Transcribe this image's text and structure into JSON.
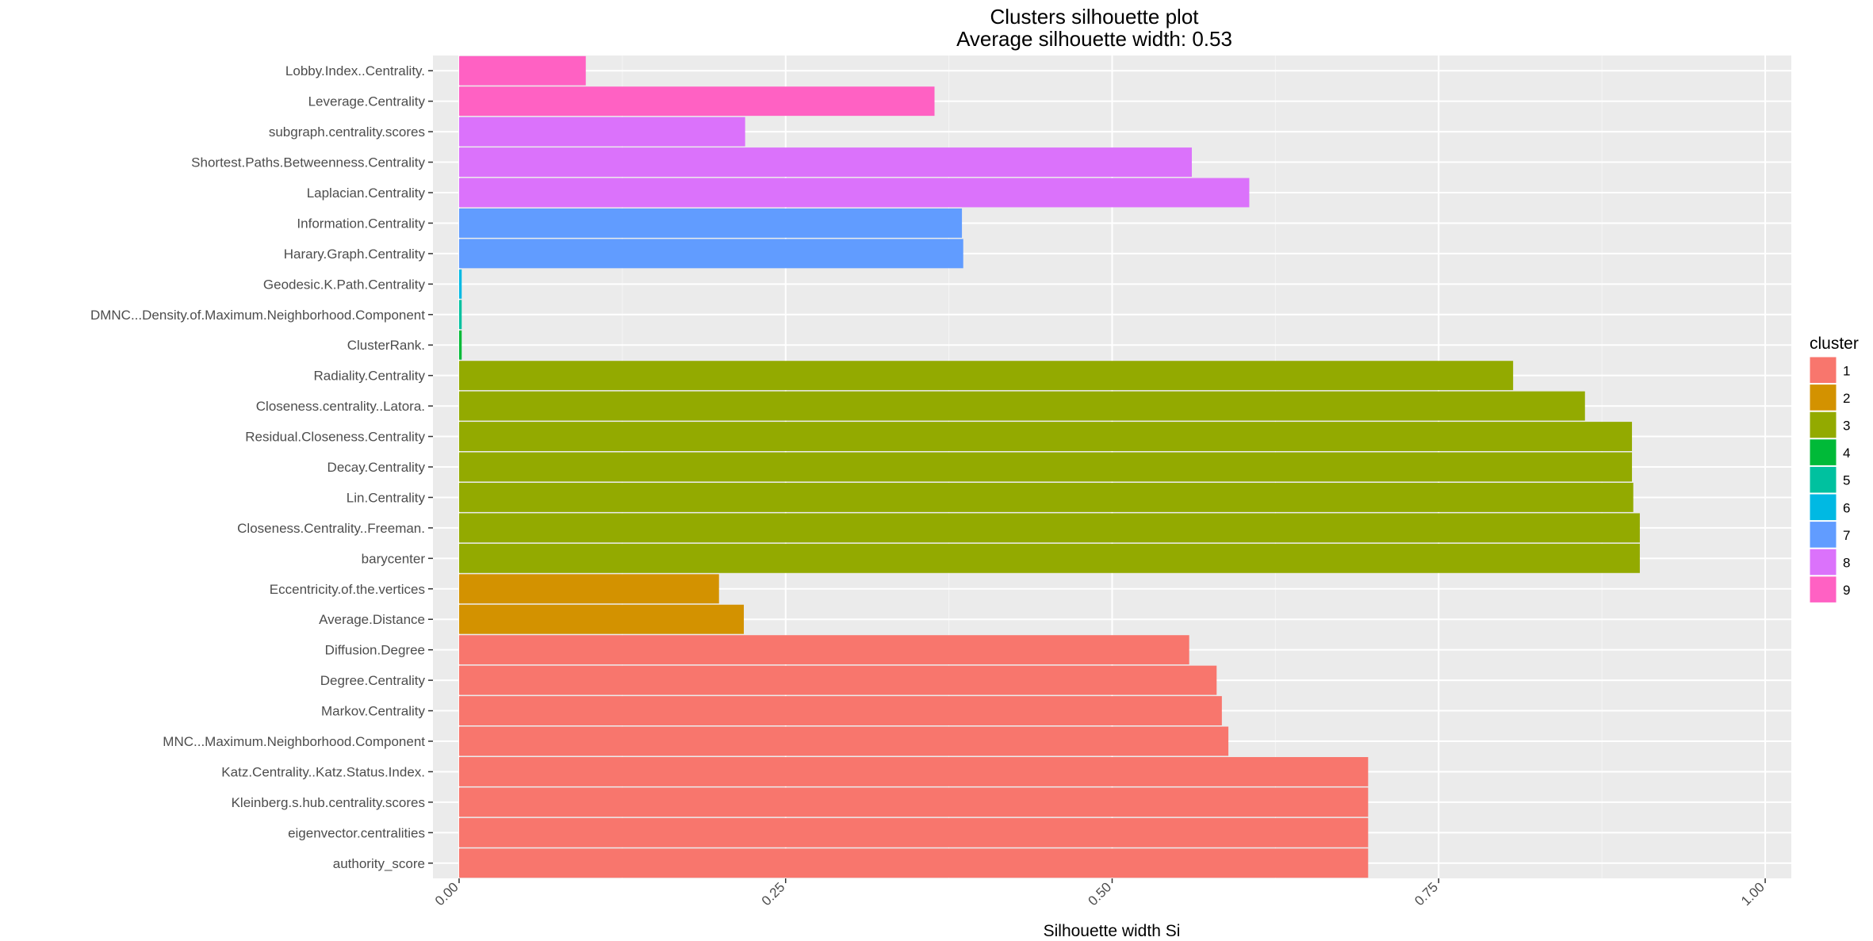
{
  "chart_data": {
    "type": "bar",
    "orientation": "horizontal",
    "title": "Clusters silhouette plot",
    "subtitle": "Average silhouette width: 0.53",
    "xlabel": "Silhouette width Si",
    "ylabel": "",
    "xlim": [
      -0.02,
      1.02
    ],
    "x_ticks": [
      "0.00",
      "0.25",
      "0.50",
      "0.75",
      "1.00"
    ],
    "x_tick_values": [
      0,
      0.25,
      0.5,
      0.75,
      1.0
    ],
    "grid": true,
    "legend": {
      "title": "cluster",
      "placement": "right",
      "entries": [
        {
          "label": "1",
          "color": "#F8766D"
        },
        {
          "label": "2",
          "color": "#D39200"
        },
        {
          "label": "3",
          "color": "#93AA00"
        },
        {
          "label": "4",
          "color": "#00BA38"
        },
        {
          "label": "5",
          "color": "#00C19F"
        },
        {
          "label": "6",
          "color": "#00B9E3"
        },
        {
          "label": "7",
          "color": "#619CFF"
        },
        {
          "label": "8",
          "color": "#DB72FB"
        },
        {
          "label": "9",
          "color": "#FF61C3"
        }
      ]
    },
    "bars": [
      {
        "label": "Lobby.Index..Centrality.",
        "value": 0.097,
        "cluster": "9"
      },
      {
        "label": "Leverage.Centrality",
        "value": 0.364,
        "cluster": "9"
      },
      {
        "label": "subgraph.centrality.scores",
        "value": 0.219,
        "cluster": "8"
      },
      {
        "label": "Shortest.Paths.Betweenness.Centrality",
        "value": 0.561,
        "cluster": "8"
      },
      {
        "label": "Laplacian.Centrality",
        "value": 0.605,
        "cluster": "8"
      },
      {
        "label": "Information.Centrality",
        "value": 0.385,
        "cluster": "7"
      },
      {
        "label": "Harary.Graph.Centrality",
        "value": 0.386,
        "cluster": "7"
      },
      {
        "label": "Geodesic.K.Path.Centrality",
        "value": 0.002,
        "cluster": "6"
      },
      {
        "label": "DMNC...Density.of.Maximum.Neighborhood.Component",
        "value": 0.002,
        "cluster": "5"
      },
      {
        "label": "ClusterRank.",
        "value": 0.002,
        "cluster": "4"
      },
      {
        "label": "Radiality.Centrality",
        "value": 0.807,
        "cluster": "3"
      },
      {
        "label": "Closeness.centrality..Latora.",
        "value": 0.862,
        "cluster": "3"
      },
      {
        "label": "Residual.Closeness.Centrality",
        "value": 0.898,
        "cluster": "3"
      },
      {
        "label": "Decay.Centrality",
        "value": 0.898,
        "cluster": "3"
      },
      {
        "label": "Lin.Centrality",
        "value": 0.899,
        "cluster": "3"
      },
      {
        "label": "Closeness.Centrality..Freeman.",
        "value": 0.904,
        "cluster": "3"
      },
      {
        "label": "barycenter",
        "value": 0.904,
        "cluster": "3"
      },
      {
        "label": "Eccentricity.of.the.vertices",
        "value": 0.199,
        "cluster": "2"
      },
      {
        "label": "Average.Distance",
        "value": 0.218,
        "cluster": "2"
      },
      {
        "label": "Diffusion.Degree",
        "value": 0.559,
        "cluster": "1"
      },
      {
        "label": "Degree.Centrality",
        "value": 0.58,
        "cluster": "1"
      },
      {
        "label": "Markov.Centrality",
        "value": 0.584,
        "cluster": "1"
      },
      {
        "label": "MNC...Maximum.Neighborhood.Component",
        "value": 0.589,
        "cluster": "1"
      },
      {
        "label": "Katz.Centrality..Katz.Status.Index.",
        "value": 0.696,
        "cluster": "1"
      },
      {
        "label": "Kleinberg.s.hub.centrality.scores",
        "value": 0.696,
        "cluster": "1"
      },
      {
        "label": "eigenvector.centralities",
        "value": 0.696,
        "cluster": "1"
      },
      {
        "label": "authority_score",
        "value": 0.696,
        "cluster": "1"
      }
    ]
  }
}
